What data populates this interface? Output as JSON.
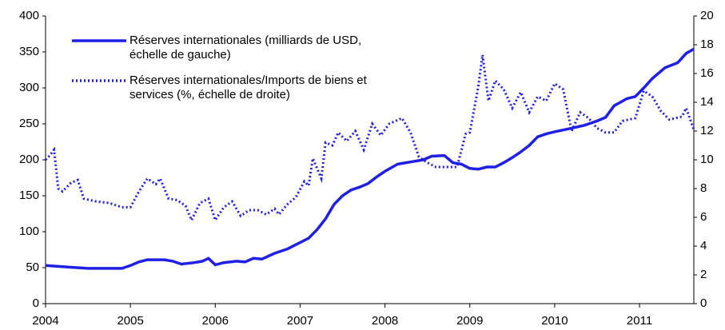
{
  "chart_data": {
    "type": "line",
    "xlim": [
      2004,
      2011.64
    ],
    "xticks": [
      2004,
      2005,
      2006,
      2007,
      2008,
      2009,
      2010,
      2011
    ],
    "ylim": [
      0,
      400
    ],
    "yticks": [
      0,
      50,
      100,
      150,
      200,
      250,
      300,
      350,
      400
    ],
    "y2lim": [
      0,
      20
    ],
    "y2ticks": [
      0,
      2,
      4,
      6,
      8,
      10,
      12,
      14,
      16,
      18,
      20
    ],
    "legend": "upper left",
    "series": [
      {
        "name": "Réserves internationales (milliards de USD, échelle de gauche)",
        "color": "#1f1fe6",
        "style": "solid",
        "x": [
          2004.0,
          2004.25,
          2004.5,
          2004.75,
          2004.9,
          2005.0,
          2005.1,
          2005.2,
          2005.4,
          2005.5,
          2005.6,
          2005.75,
          2005.85,
          2005.92,
          2006.0,
          2006.1,
          2006.25,
          2006.35,
          2006.45,
          2006.55,
          2006.7,
          2006.85,
          2007.0,
          2007.1,
          2007.2,
          2007.3,
          2007.4,
          2007.5,
          2007.6,
          2007.7,
          2007.8,
          2007.9,
          2008.0,
          2008.15,
          2008.3,
          2008.45,
          2008.55,
          2008.7,
          2008.8,
          2008.9,
          2009.0,
          2009.1,
          2009.2,
          2009.3,
          2009.4,
          2009.5,
          2009.6,
          2009.7,
          2009.8,
          2009.9,
          2010.0,
          2010.2,
          2010.35,
          2010.5,
          2010.6,
          2010.7,
          2010.85,
          2010.95,
          2011.05,
          2011.15,
          2011.3,
          2011.45,
          2011.55,
          2011.64
        ],
        "values": [
          53,
          51,
          49,
          49,
          49,
          53,
          58,
          61,
          61,
          59,
          55,
          57,
          59,
          63,
          54,
          57,
          59,
          58,
          63,
          62,
          70,
          76,
          85,
          91,
          103,
          118,
          138,
          150,
          158,
          162,
          167,
          176,
          184,
          194,
          197,
          200,
          205,
          206,
          196,
          194,
          188,
          187,
          190,
          190,
          196,
          203,
          211,
          220,
          232,
          236,
          239,
          244,
          248,
          254,
          259,
          275,
          285,
          288,
          300,
          313,
          328,
          335,
          348,
          354
        ]
      },
      {
        "name": "Réserves internationales/Imports de biens et services (%, échelle de droite)",
        "color": "#1f1fe6",
        "style": "dotted",
        "axis": "y2",
        "x": [
          2004.0,
          2004.05,
          2004.1,
          2004.15,
          2004.2,
          2004.3,
          2004.38,
          2004.45,
          2004.6,
          2004.75,
          2004.9,
          2005.0,
          2005.1,
          2005.2,
          2005.3,
          2005.35,
          2005.45,
          2005.55,
          2005.65,
          2005.72,
          2005.82,
          2005.92,
          2006.0,
          2006.1,
          2006.2,
          2006.3,
          2006.4,
          2006.5,
          2006.6,
          2006.7,
          2006.75,
          2006.85,
          2006.95,
          2007.05,
          2007.1,
          2007.15,
          2007.25,
          2007.3,
          2007.38,
          2007.45,
          2007.55,
          2007.65,
          2007.75,
          2007.85,
          2007.95,
          2008.05,
          2008.2,
          2008.3,
          2008.4,
          2008.5,
          2008.6,
          2008.75,
          2008.85,
          2008.95,
          2009.0,
          2009.1,
          2009.15,
          2009.22,
          2009.3,
          2009.4,
          2009.5,
          2009.6,
          2009.7,
          2009.8,
          2009.9,
          2010.0,
          2010.1,
          2010.2,
          2010.3,
          2010.4,
          2010.5,
          2010.6,
          2010.7,
          2010.8,
          2010.95,
          2011.05,
          2011.15,
          2011.25,
          2011.35,
          2011.5,
          2011.55,
          2011.64
        ],
        "values": [
          10.0,
          10.3,
          10.7,
          8.0,
          7.8,
          8.4,
          8.6,
          7.3,
          7.1,
          7.0,
          6.7,
          6.7,
          7.8,
          8.7,
          8.3,
          8.7,
          7.3,
          7.2,
          6.8,
          5.8,
          7.0,
          7.3,
          5.8,
          6.7,
          7.1,
          6.1,
          6.5,
          6.5,
          6.2,
          6.6,
          6.2,
          6.9,
          7.4,
          8.5,
          8.2,
          10.1,
          8.7,
          11.2,
          11.0,
          11.9,
          11.3,
          12.0,
          10.7,
          12.5,
          11.7,
          12.5,
          12.9,
          11.9,
          10.2,
          9.8,
          9.5,
          9.5,
          9.5,
          11.8,
          11.9,
          15.1,
          17.3,
          14.1,
          15.5,
          14.9,
          13.6,
          14.7,
          13.3,
          14.4,
          14.1,
          15.3,
          14.9,
          12.0,
          13.3,
          12.9,
          12.2,
          11.9,
          11.9,
          12.7,
          12.9,
          14.8,
          14.4,
          13.4,
          12.8,
          13.0,
          13.6,
          12.1
        ]
      }
    ]
  }
}
